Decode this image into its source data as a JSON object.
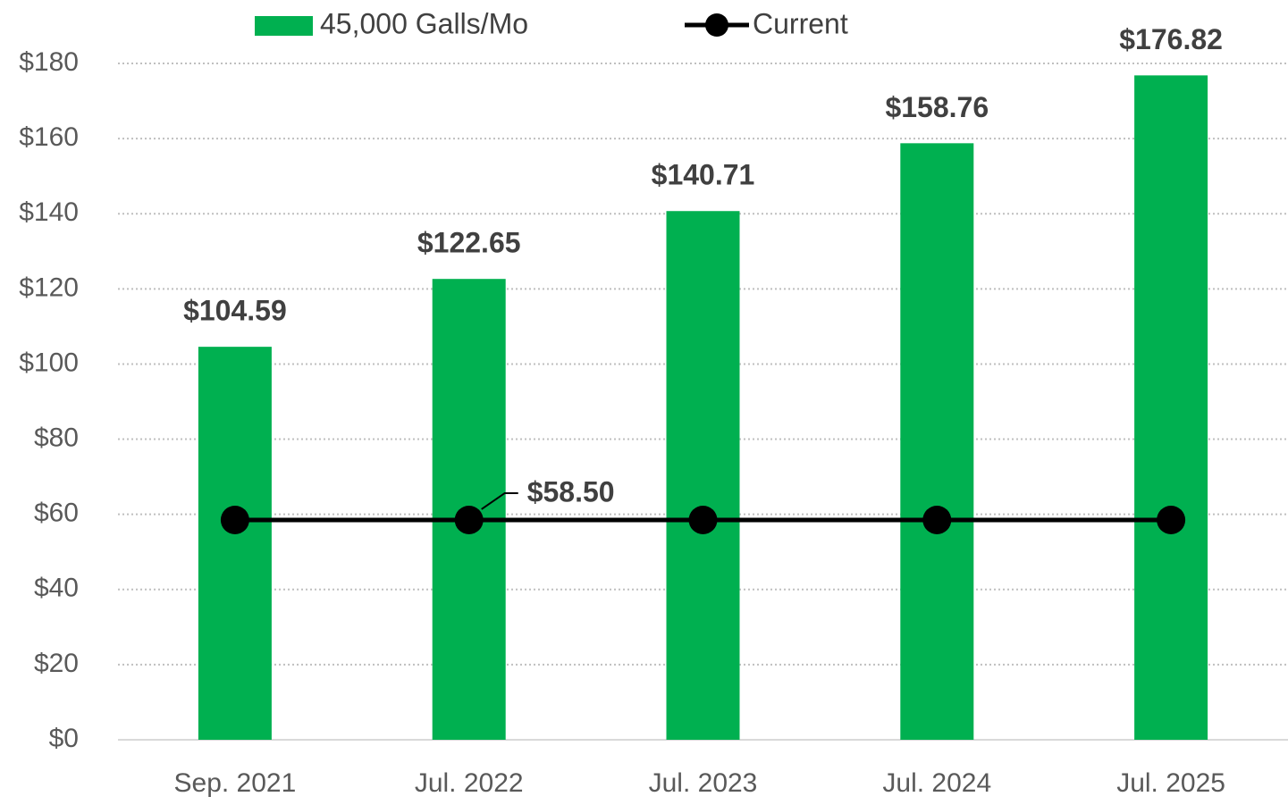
{
  "chart_data": {
    "type": "bar_line",
    "categories": [
      "Sep. 2021",
      "Jul. 2022",
      "Jul. 2023",
      "Jul. 2024",
      "Jul. 2025"
    ],
    "series": [
      {
        "name": "45,000 Galls/Mo",
        "type": "bar",
        "color": "#00b050",
        "values": [
          104.59,
          122.65,
          140.71,
          158.76,
          176.82
        ],
        "value_labels": [
          "$104.59",
          "$122.65",
          "$140.71",
          "$158.76",
          "$176.82"
        ]
      },
      {
        "name": "Current",
        "type": "line",
        "color": "#000000",
        "values": [
          58.5,
          58.5,
          58.5,
          58.5,
          58.5
        ],
        "value_labels": [
          null,
          "$58.50",
          null,
          null,
          null
        ]
      }
    ],
    "ylim": [
      0,
      180
    ],
    "yticks": [
      {
        "value": 0,
        "label": "$0"
      },
      {
        "value": 20,
        "label": "$20"
      },
      {
        "value": 40,
        "label": "$40"
      },
      {
        "value": 60,
        "label": "$60"
      },
      {
        "value": 80,
        "label": "$80"
      },
      {
        "value": 100,
        "label": "$100"
      },
      {
        "value": 120,
        "label": "$120"
      },
      {
        "value": 140,
        "label": "$140"
      },
      {
        "value": 160,
        "label": "$160"
      },
      {
        "value": 180,
        "label": "$180"
      }
    ],
    "grid": true,
    "legend": "top"
  }
}
